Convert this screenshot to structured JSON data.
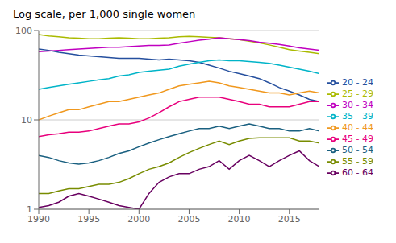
{
  "chart_data": {
    "type": "line",
    "title": "Log scale, per 1,000 single women",
    "x": [
      1990,
      1991,
      1992,
      1993,
      1994,
      1995,
      1996,
      1997,
      1998,
      1999,
      2000,
      2001,
      2002,
      2003,
      2004,
      2005,
      2006,
      2007,
      2008,
      2009,
      2010,
      2011,
      2012,
      2013,
      2014,
      2015,
      2016,
      2017,
      2018
    ],
    "series": [
      {
        "name": "20 - 24",
        "color": "#254f9e",
        "values": [
          62,
          60,
          57,
          55,
          53,
          52,
          51,
          50,
          49,
          49,
          49,
          48,
          47,
          48,
          47,
          46,
          44,
          41,
          38,
          35,
          33,
          31,
          29,
          26,
          23,
          21,
          19,
          17,
          16
        ]
      },
      {
        "name": "25 - 29",
        "color": "#aaba00",
        "values": [
          90,
          87,
          85,
          83,
          82,
          81,
          81,
          82,
          83,
          82,
          81,
          81,
          82,
          83,
          85,
          86,
          85,
          84,
          83,
          81,
          79,
          76,
          73,
          69,
          65,
          61,
          59,
          57,
          55
        ]
      },
      {
        "name": "30 - 34",
        "color": "#c000c0",
        "values": [
          58,
          59,
          60,
          61,
          62,
          63,
          64,
          65,
          65,
          66,
          67,
          68,
          68,
          69,
          72,
          75,
          78,
          80,
          83,
          81,
          79,
          77,
          74,
          72,
          70,
          67,
          64,
          62,
          60
        ]
      },
      {
        "name": "35 - 39",
        "color": "#00b4c8",
        "values": [
          22,
          23,
          24,
          25,
          26,
          27,
          28,
          29,
          31,
          32,
          34,
          35,
          36,
          37,
          40,
          42,
          44,
          46,
          47,
          46,
          46,
          45,
          44,
          43,
          41,
          39,
          37,
          35,
          33
        ]
      },
      {
        "name": "40 - 44",
        "color": "#f0981e",
        "values": [
          10,
          11,
          12,
          13,
          13,
          14,
          15,
          16,
          16,
          17,
          18,
          19,
          20,
          22,
          24,
          25,
          26,
          27,
          26,
          24,
          23,
          22,
          21,
          20,
          20,
          19,
          20,
          21,
          20
        ]
      },
      {
        "name": "45 - 49",
        "color": "#e8007c",
        "values": [
          6.5,
          6.8,
          7.0,
          7.3,
          7.3,
          7.5,
          8.0,
          8.5,
          9.0,
          9.0,
          9.5,
          10.5,
          12,
          14,
          16,
          17,
          18,
          18,
          18,
          17,
          16,
          15,
          15,
          14,
          14,
          14,
          15,
          16,
          16
        ]
      },
      {
        "name": "50 - 54",
        "color": "#1a6080",
        "values": [
          4.0,
          3.8,
          3.5,
          3.3,
          3.2,
          3.3,
          3.5,
          3.8,
          4.2,
          4.5,
          5.0,
          5.5,
          6.0,
          6.5,
          7.0,
          7.5,
          8.0,
          8.0,
          8.5,
          8.0,
          8.5,
          9.0,
          8.5,
          8.0,
          8.0,
          7.5,
          7.5,
          8.0,
          7.5
        ]
      },
      {
        "name": "55 - 59",
        "color": "#788c00",
        "values": [
          1.5,
          1.5,
          1.6,
          1.7,
          1.7,
          1.8,
          1.9,
          1.9,
          2.0,
          2.2,
          2.5,
          2.8,
          3.0,
          3.3,
          3.8,
          4.3,
          4.8,
          5.3,
          5.8,
          5.3,
          5.8,
          6.2,
          6.3,
          6.3,
          6.3,
          6.3,
          5.8,
          5.8,
          5.5
        ]
      },
      {
        "name": "60 - 64",
        "color": "#680060",
        "values": [
          1.05,
          1.1,
          1.2,
          1.4,
          1.5,
          1.4,
          1.3,
          1.2,
          1.1,
          1.05,
          1.0,
          1.5,
          2.0,
          2.3,
          2.5,
          2.5,
          2.8,
          3.0,
          3.5,
          2.8,
          3.5,
          4.0,
          3.5,
          3.0,
          3.5,
          4.0,
          4.5,
          3.5,
          3.0
        ]
      }
    ],
    "xlim": [
      1990,
      2018
    ],
    "xticks": [
      1990,
      1995,
      2000,
      2005,
      2010,
      2015
    ],
    "ylim": [
      1,
      100
    ],
    "yticks": [
      1,
      10,
      100
    ],
    "log": "y",
    "grid": true,
    "legend": "right"
  }
}
